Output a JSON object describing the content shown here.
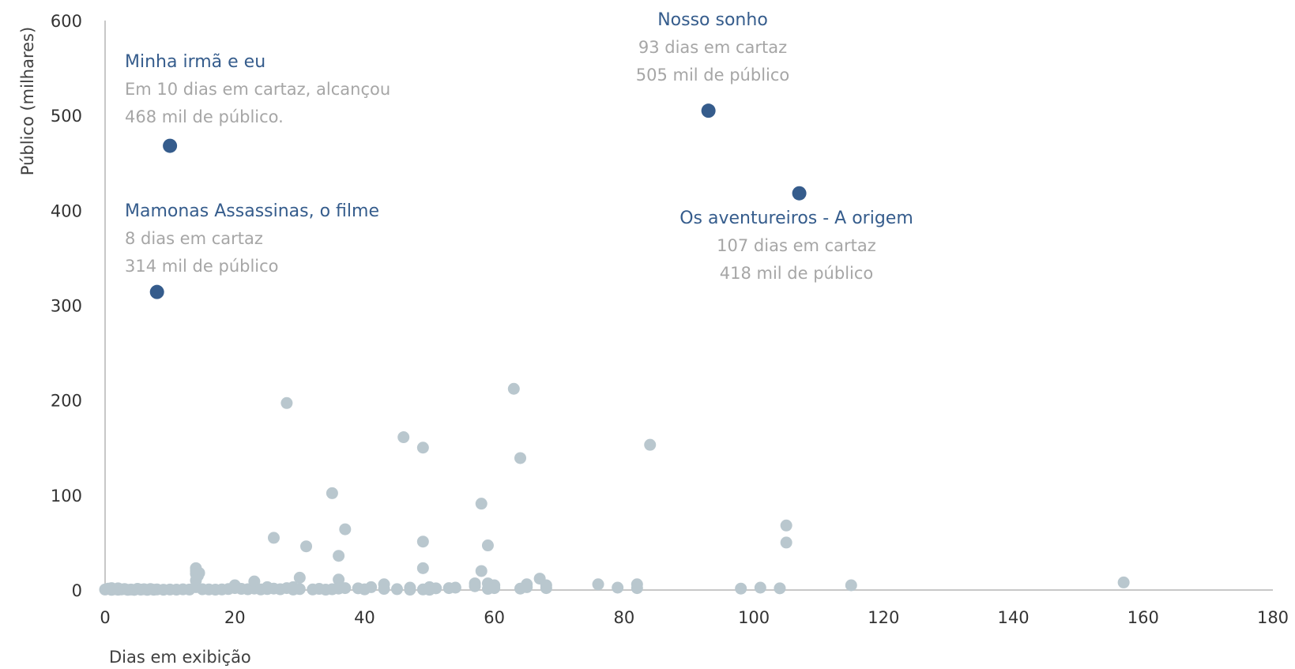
{
  "chart_data": {
    "type": "scatter",
    "title": "",
    "xlabel": "Dias em exibição",
    "ylabel": "Público (milhares)",
    "xlim": [
      0,
      180
    ],
    "ylim": [
      0,
      600
    ],
    "xticks": [
      0,
      20,
      40,
      60,
      80,
      100,
      120,
      140,
      160,
      180
    ],
    "yticks": [
      0,
      100,
      200,
      300,
      400,
      500,
      600
    ],
    "grid": false,
    "legend": "none",
    "colors": {
      "background_points": "#b9c7ce",
      "highlight_points": "#355c8c",
      "annotation_title": "#355c8c",
      "annotation_text": "#a6a6a6",
      "axis": "#c8c8c8",
      "tick_label": "#333333"
    },
    "highlighted_points": [
      {
        "x": 10,
        "y": 468
      },
      {
        "x": 93,
        "y": 505
      },
      {
        "x": 8,
        "y": 314
      },
      {
        "x": 107,
        "y": 418
      }
    ],
    "annotations": [
      {
        "title": "Minha irmã e eu",
        "lines": [
          "Em 10 dias em cartaz, alcançou",
          "468 mil de público."
        ],
        "x": 10,
        "y": 468
      },
      {
        "title": "Nosso sonho",
        "lines": [
          "93 dias em cartaz",
          "505 mil de público"
        ],
        "x": 93,
        "y": 505
      },
      {
        "title": "Mamonas Assassinas, o filme",
        "lines": [
          "8 dias em cartaz",
          "314 mil de público"
        ],
        "x": 8,
        "y": 314
      },
      {
        "title": "Os aventureiros - A origem",
        "lines": [
          "107 dias em cartaz",
          "418 mil de público"
        ],
        "x": 107,
        "y": 418
      }
    ],
    "points": [
      {
        "x": 0,
        "y": 0.5
      },
      {
        "x": 0.5,
        "y": 1.5
      },
      {
        "x": 1,
        "y": 0.2
      },
      {
        "x": 1,
        "y": 2
      },
      {
        "x": 1.5,
        "y": 0.8
      },
      {
        "x": 2,
        "y": 0.3
      },
      {
        "x": 2,
        "y": 1.8
      },
      {
        "x": 2.5,
        "y": 0.6
      },
      {
        "x": 3,
        "y": 1
      },
      {
        "x": 3.5,
        "y": 0.2
      },
      {
        "x": 4,
        "y": 0.5
      },
      {
        "x": 4.5,
        "y": 0.1
      },
      {
        "x": 5,
        "y": 1.2
      },
      {
        "x": 5.5,
        "y": 0.4
      },
      {
        "x": 6,
        "y": 0.8
      },
      {
        "x": 6.5,
        "y": 0.2
      },
      {
        "x": 7,
        "y": 1
      },
      {
        "x": 7.5,
        "y": 0.3
      },
      {
        "x": 8,
        "y": 0.6
      },
      {
        "x": 9,
        "y": 0.3
      },
      {
        "x": 10,
        "y": 0.5
      },
      {
        "x": 11,
        "y": 0.4
      },
      {
        "x": 12,
        "y": 0.7
      },
      {
        "x": 13,
        "y": 0.5
      },
      {
        "x": 14,
        "y": 23
      },
      {
        "x": 14,
        "y": 20
      },
      {
        "x": 14,
        "y": 17
      },
      {
        "x": 14.3,
        "y": 15
      },
      {
        "x": 14.5,
        "y": 18
      },
      {
        "x": 14,
        "y": 10
      },
      {
        "x": 14,
        "y": 3
      },
      {
        "x": 15,
        "y": 0.8
      },
      {
        "x": 16,
        "y": 0.6
      },
      {
        "x": 17,
        "y": 0.4
      },
      {
        "x": 18,
        "y": 0.6
      },
      {
        "x": 19,
        "y": 1
      },
      {
        "x": 20,
        "y": 2
      },
      {
        "x": 20,
        "y": 5
      },
      {
        "x": 21,
        "y": 1.2
      },
      {
        "x": 22,
        "y": 0.8
      },
      {
        "x": 23,
        "y": 1.5
      },
      {
        "x": 23,
        "y": 9
      },
      {
        "x": 24,
        "y": 0.6
      },
      {
        "x": 25,
        "y": 3
      },
      {
        "x": 25,
        "y": 1
      },
      {
        "x": 26,
        "y": 55
      },
      {
        "x": 26,
        "y": 1.5
      },
      {
        "x": 27,
        "y": 0.8
      },
      {
        "x": 28,
        "y": 197
      },
      {
        "x": 28,
        "y": 2
      },
      {
        "x": 29,
        "y": 3
      },
      {
        "x": 29,
        "y": 0.5
      },
      {
        "x": 30,
        "y": 13
      },
      {
        "x": 30,
        "y": 1
      },
      {
        "x": 31,
        "y": 46
      },
      {
        "x": 32,
        "y": 0.6
      },
      {
        "x": 33,
        "y": 1.2
      },
      {
        "x": 34,
        "y": 0.4
      },
      {
        "x": 35,
        "y": 102
      },
      {
        "x": 35,
        "y": 0.8
      },
      {
        "x": 36,
        "y": 36
      },
      {
        "x": 36,
        "y": 11
      },
      {
        "x": 36,
        "y": 1.5
      },
      {
        "x": 37,
        "y": 64
      },
      {
        "x": 37,
        "y": 2
      },
      {
        "x": 39,
        "y": 1.8
      },
      {
        "x": 40,
        "y": 0.7
      },
      {
        "x": 41,
        "y": 3
      },
      {
        "x": 43,
        "y": 6
      },
      {
        "x": 43,
        "y": 1.2
      },
      {
        "x": 45,
        "y": 0.9
      },
      {
        "x": 46,
        "y": 161
      },
      {
        "x": 47,
        "y": 2.5
      },
      {
        "x": 47,
        "y": 0.4
      },
      {
        "x": 49,
        "y": 150
      },
      {
        "x": 49,
        "y": 51
      },
      {
        "x": 49,
        "y": 23
      },
      {
        "x": 49,
        "y": 0.6
      },
      {
        "x": 50,
        "y": 3
      },
      {
        "x": 50,
        "y": 0.3
      },
      {
        "x": 51,
        "y": 1.8
      },
      {
        "x": 53,
        "y": 2
      },
      {
        "x": 54,
        "y": 2.5
      },
      {
        "x": 57,
        "y": 7
      },
      {
        "x": 57,
        "y": 4
      },
      {
        "x": 58,
        "y": 91
      },
      {
        "x": 58,
        "y": 20
      },
      {
        "x": 59,
        "y": 47
      },
      {
        "x": 59,
        "y": 7
      },
      {
        "x": 59,
        "y": 1.2
      },
      {
        "x": 60,
        "y": 5
      },
      {
        "x": 60,
        "y": 2
      },
      {
        "x": 63,
        "y": 212
      },
      {
        "x": 64,
        "y": 139
      },
      {
        "x": 64,
        "y": 1.5
      },
      {
        "x": 65,
        "y": 6
      },
      {
        "x": 65,
        "y": 3
      },
      {
        "x": 67,
        "y": 12
      },
      {
        "x": 68,
        "y": 5
      },
      {
        "x": 68,
        "y": 2
      },
      {
        "x": 76,
        "y": 6
      },
      {
        "x": 79,
        "y": 2.5
      },
      {
        "x": 82,
        "y": 6
      },
      {
        "x": 82,
        "y": 2
      },
      {
        "x": 84,
        "y": 153
      },
      {
        "x": 98,
        "y": 1.5
      },
      {
        "x": 101,
        "y": 2.5
      },
      {
        "x": 104,
        "y": 1.8
      },
      {
        "x": 105,
        "y": 68
      },
      {
        "x": 105,
        "y": 50
      },
      {
        "x": 115,
        "y": 5
      },
      {
        "x": 157,
        "y": 8
      }
    ]
  }
}
